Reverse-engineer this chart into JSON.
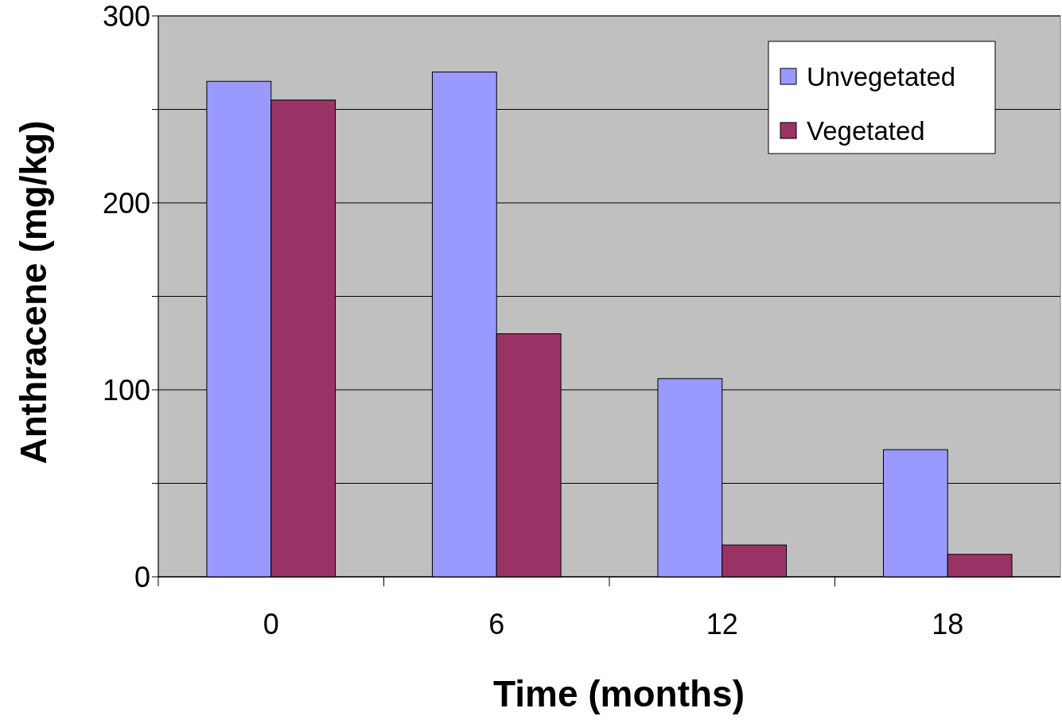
{
  "chart_data": {
    "type": "bar",
    "xlabel": "Time (months)",
    "ylabel": "Anthracene (mg/kg)",
    "categories": [
      "0",
      "6",
      "12",
      "18"
    ],
    "series": [
      {
        "name": "Unvegetated",
        "color": "#9999ff",
        "values": [
          265,
          270,
          106,
          68
        ]
      },
      {
        "name": "Vegetated",
        "color": "#993366",
        "values": [
          255,
          130,
          17,
          12
        ]
      }
    ],
    "ylim": [
      0,
      300
    ],
    "yticks": [
      0,
      {
        "value": 50,
        "label": null
      },
      100,
      {
        "value": 150,
        "label": null
      },
      200,
      {
        "value": 250,
        "label": null
      },
      300
    ],
    "grid": "y",
    "legend": "top right"
  }
}
